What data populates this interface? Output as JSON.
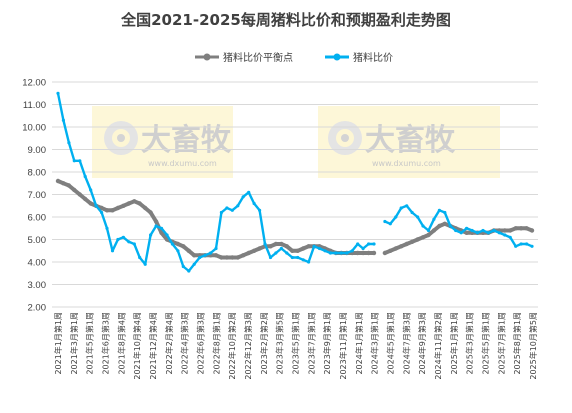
{
  "chart_data": {
    "type": "line",
    "title": "全国2021-2025每周猪料比价和预期盈利走势图",
    "xlabel": "",
    "ylabel": "",
    "ylim": [
      2.0,
      12.0
    ],
    "yticks": [
      "2.00",
      "3.00",
      "4.00",
      "5.00",
      "6.00",
      "7.00",
      "8.00",
      "9.00",
      "10.00",
      "11.00",
      "12.00"
    ],
    "grid": "horizontal",
    "legend_position": "top-center",
    "x_tick_labels": [
      "2021年1月第1周",
      "2021年3月第1周",
      "2021年5月第1周",
      "2021年6月第3周",
      "2021年8月第4周",
      "2021年10月第4周",
      "2021年12月第4周",
      "2022年2月第4周",
      "2022年4月第3周",
      "2022年6月第3周",
      "2022年8月第1周",
      "2022年10月第2周",
      "2022年12月第3周",
      "2023年2月第2周",
      "2023年3月第5周",
      "2023年5月第1周",
      "2023年7月第1周",
      "2023年9月第1周",
      "2023年11月第1周",
      "2024年1月第1周",
      "2024年3月第1周",
      "2024年5月第1周",
      "2024年7月第3周",
      "2024年9月第3周",
      "2024年11月第2周",
      "2025年1月第1周",
      "2025年3月第1周",
      "2025年5月第1周",
      "2025年7月第1周",
      "2025年8月第1周",
      "2025年10月第5周"
    ],
    "series": [
      {
        "name": "猪料比价平衡点",
        "color": "#7f7f7f",
        "values": [
          7.6,
          7.5,
          7.4,
          7.2,
          7.0,
          6.8,
          6.6,
          6.5,
          6.4,
          6.3,
          6.3,
          6.4,
          6.5,
          6.6,
          6.7,
          6.6,
          6.4,
          6.2,
          5.8,
          5.3,
          5.0,
          4.9,
          4.8,
          4.7,
          4.5,
          4.3,
          4.3,
          4.3,
          4.3,
          4.3,
          4.2,
          4.2,
          4.2,
          4.2,
          4.3,
          4.4,
          4.5,
          4.6,
          4.7,
          4.7,
          4.8,
          4.8,
          4.7,
          4.5,
          4.5,
          4.6,
          4.7,
          4.7,
          4.7,
          4.6,
          4.5,
          4.4,
          4.4,
          4.4,
          4.4,
          4.4,
          4.4,
          4.4,
          4.4,
          null,
          4.4,
          4.5,
          4.6,
          4.7,
          4.8,
          4.9,
          5.0,
          5.1,
          5.2,
          5.4,
          5.6,
          5.7,
          5.6,
          5.5,
          5.4,
          5.3,
          5.3,
          5.3,
          5.3,
          5.3,
          5.4,
          5.4,
          5.4,
          5.4,
          5.5,
          5.5,
          5.5,
          5.4
        ]
      },
      {
        "name": "猪料比价",
        "color": "#00b0f0",
        "values": [
          11.5,
          10.3,
          9.3,
          8.5,
          8.5,
          7.8,
          7.2,
          6.5,
          6.2,
          5.5,
          4.5,
          5.0,
          5.1,
          4.9,
          4.8,
          4.2,
          3.9,
          5.2,
          5.6,
          5.5,
          5.2,
          4.8,
          4.5,
          3.8,
          3.6,
          3.9,
          4.2,
          4.3,
          4.4,
          4.6,
          6.2,
          6.4,
          6.3,
          6.5,
          6.9,
          7.1,
          6.6,
          6.3,
          4.8,
          4.2,
          4.4,
          4.6,
          4.4,
          4.2,
          4.2,
          4.1,
          4.0,
          4.7,
          4.6,
          4.5,
          4.4,
          4.4,
          4.4,
          4.4,
          4.5,
          4.8,
          4.6,
          4.8,
          4.8,
          null,
          5.8,
          5.7,
          6.0,
          6.4,
          6.5,
          6.2,
          6.0,
          5.6,
          5.4,
          5.9,
          6.3,
          6.2,
          5.6,
          5.4,
          5.3,
          5.5,
          5.4,
          5.3,
          5.4,
          5.3,
          5.4,
          5.3,
          5.2,
          5.1,
          4.7,
          4.8,
          4.8,
          4.7
        ]
      }
    ]
  },
  "watermark": {
    "brand": "大畜牧",
    "url": "www.dxumu.com"
  }
}
